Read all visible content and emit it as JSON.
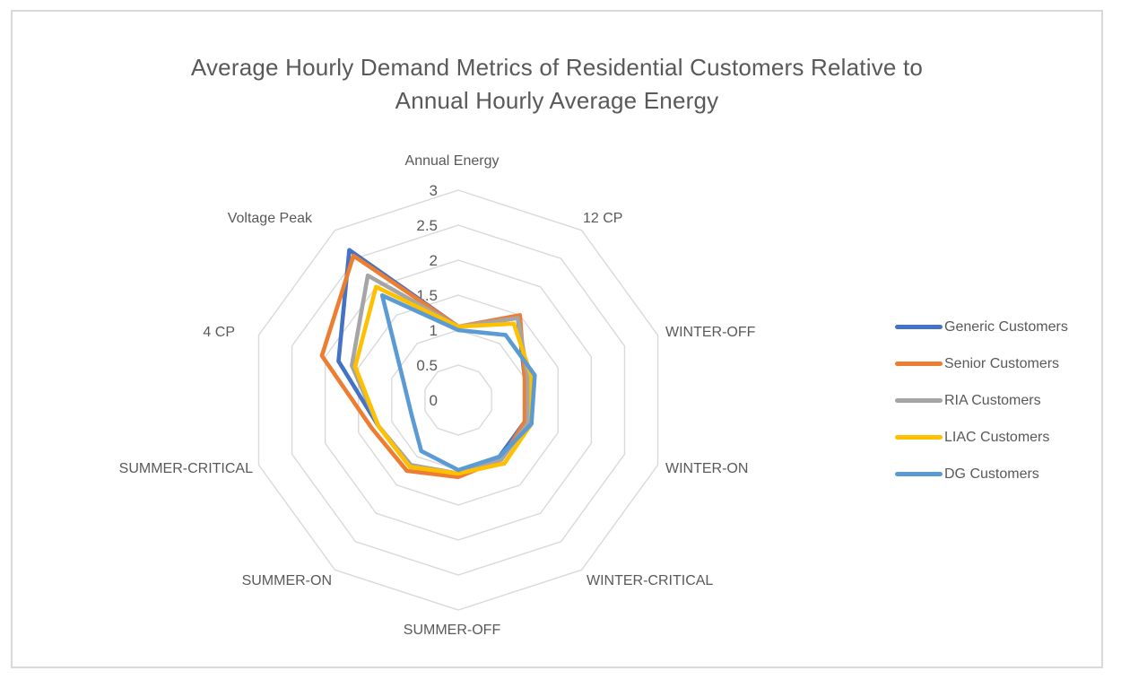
{
  "frame": {
    "background": "#FFFFFF",
    "border_color": "#D9D9D9"
  },
  "title": {
    "line1": "Average Hourly Demand Metrics of Residential Customers Relative to",
    "line2": "Annual Hourly Average Energy",
    "color": "#595959"
  },
  "chart_data": {
    "type": "radar",
    "title": "Average Hourly Demand Metrics of Residential Customers Relative to Annual Hourly Average Energy",
    "categories": [
      "Annual Energy",
      "12 CP",
      "WINTER-OFF",
      "WINTER-ON",
      "WINTER-CRITICAL",
      "SUMMER-OFF",
      "SUMMER-ON",
      "SUMMER-CRITICAL",
      "4 CP",
      "Voltage Peak"
    ],
    "radial_axis": {
      "min": 0,
      "max": 3,
      "step": 0.5,
      "tick_labels": [
        "3",
        "2.5",
        "2",
        "1.5",
        "1",
        "0.5",
        "0"
      ]
    },
    "grid": {
      "shape": "decagon",
      "ring_values": [
        0.5,
        1,
        1.5,
        2,
        2.5,
        3
      ],
      "color": "#D9D9D9",
      "spokes": false
    },
    "legend": {
      "position": "right"
    },
    "text_color": "#595959",
    "series": [
      {
        "name": "Generic Customers",
        "color": "#4472C4",
        "values": [
          1.05,
          1.45,
          1.0,
          1.0,
          1.0,
          1.05,
          1.15,
          1.2,
          1.8,
          2.65
        ]
      },
      {
        "name": "Senior Customers",
        "color": "#ED7D31",
        "values": [
          1.05,
          1.5,
          1.0,
          1.0,
          1.05,
          1.1,
          1.25,
          1.3,
          2.05,
          2.55
        ]
      },
      {
        "name": "RIA Customers",
        "color": "#A5A5A5",
        "values": [
          1.05,
          1.45,
          1.05,
          1.05,
          1.05,
          1.05,
          1.15,
          1.2,
          1.6,
          2.2
        ]
      },
      {
        "name": "LIAC Customers",
        "color": "#FFC000",
        "values": [
          1.05,
          1.35,
          1.1,
          1.1,
          1.12,
          1.05,
          1.18,
          1.2,
          1.55,
          2.0
        ]
      },
      {
        "name": "DG Customers",
        "color": "#5B9BD5",
        "values": [
          1.0,
          1.15,
          1.15,
          1.1,
          1.0,
          1.0,
          0.9,
          0.7,
          0.82,
          1.85
        ]
      }
    ]
  }
}
